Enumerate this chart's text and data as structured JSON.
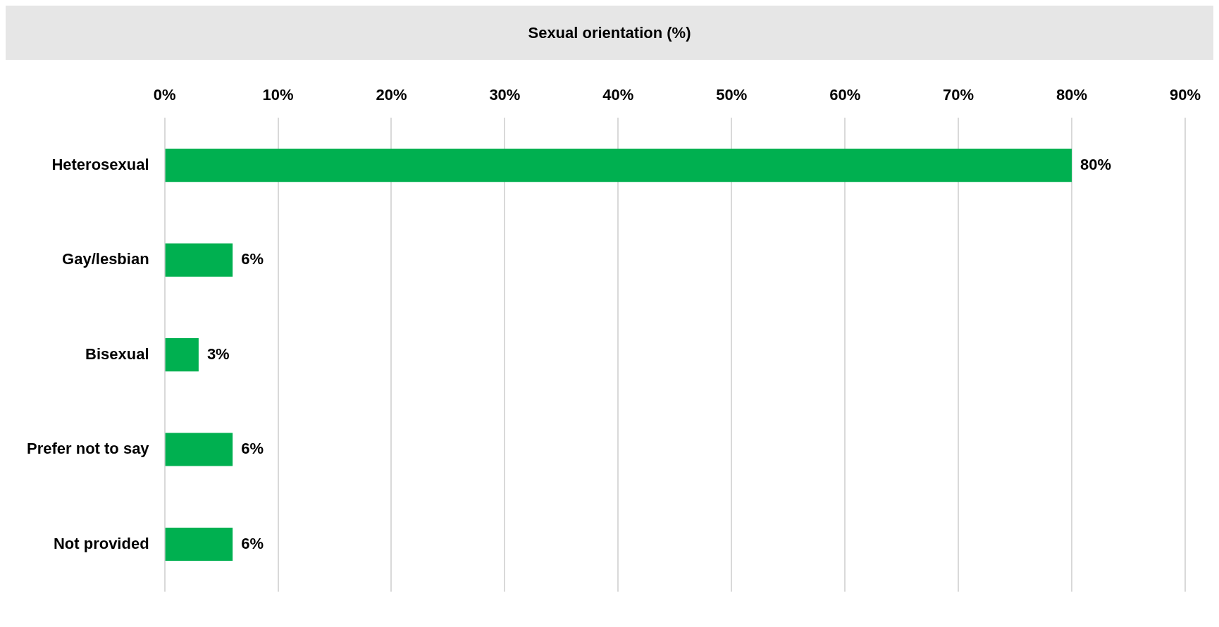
{
  "chart_data": {
    "type": "bar",
    "orientation": "horizontal",
    "title": "Sexual orientation (%)",
    "categories": [
      "Heterosexual",
      "Gay/lesbian",
      "Bisexual",
      "Prefer not to say",
      "Not provided"
    ],
    "values": [
      80,
      6,
      3,
      6,
      6
    ],
    "value_labels": [
      "80%",
      "6%",
      "3%",
      "6%",
      "6%"
    ],
    "color": "#00b050",
    "xlim": [
      0,
      90
    ],
    "xticks": [
      {
        "value": 0,
        "label": "0%"
      },
      {
        "value": 10,
        "label": "10%"
      },
      {
        "value": 20,
        "label": "20%"
      },
      {
        "value": 30,
        "label": "30%"
      },
      {
        "value": 40,
        "label": "40%"
      },
      {
        "value": 50,
        "label": "50%"
      },
      {
        "value": 60,
        "label": "60%"
      },
      {
        "value": 70,
        "label": "70%"
      },
      {
        "value": 80,
        "label": "80%"
      },
      {
        "value": 90,
        "label": "90%"
      }
    ],
    "grid": "x",
    "legend": false
  }
}
